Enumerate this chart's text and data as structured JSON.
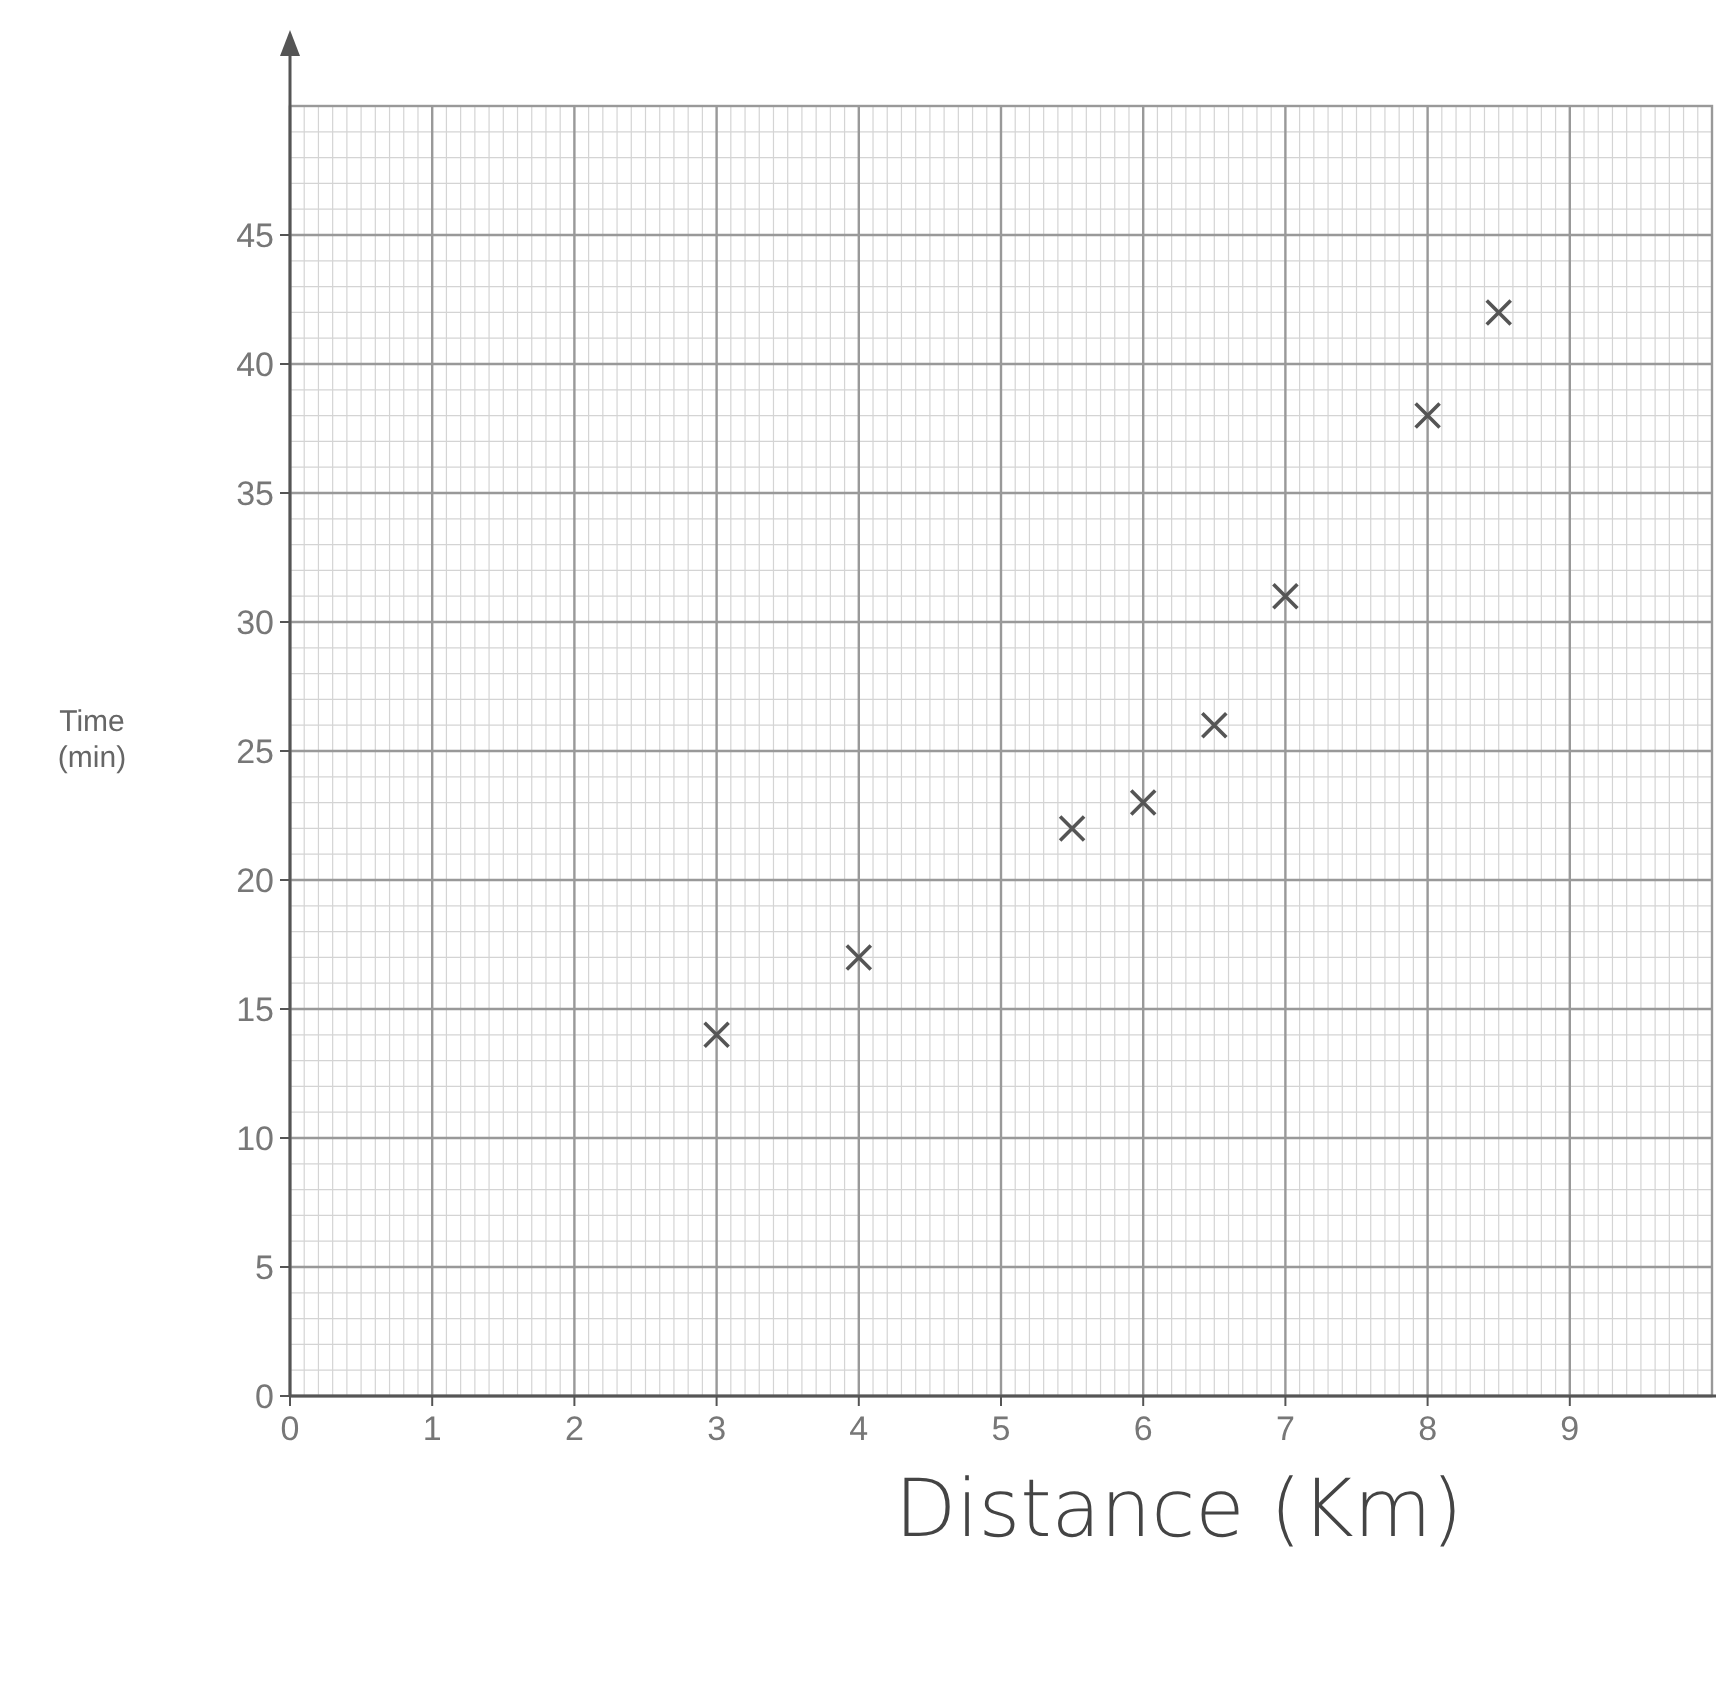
{
  "chart_data": {
    "type": "scatter",
    "xlabel": "Distance (Km)",
    "ylabel": "Time\n(min)",
    "x": [
      3,
      4,
      5.5,
      6,
      6.5,
      7,
      8,
      8.5
    ],
    "values": [
      14,
      17,
      22,
      23,
      26,
      31,
      38,
      42
    ],
    "color": "#555555",
    "marker": "cross",
    "grid": true,
    "xlim": [
      0,
      10
    ],
    "xticks": [
      0,
      1,
      2,
      3,
      4,
      5,
      6,
      7,
      8,
      9
    ],
    "ylim": [
      0,
      50
    ],
    "yticks": [
      0,
      5,
      10,
      15,
      20,
      25,
      30,
      35,
      40,
      45
    ]
  }
}
